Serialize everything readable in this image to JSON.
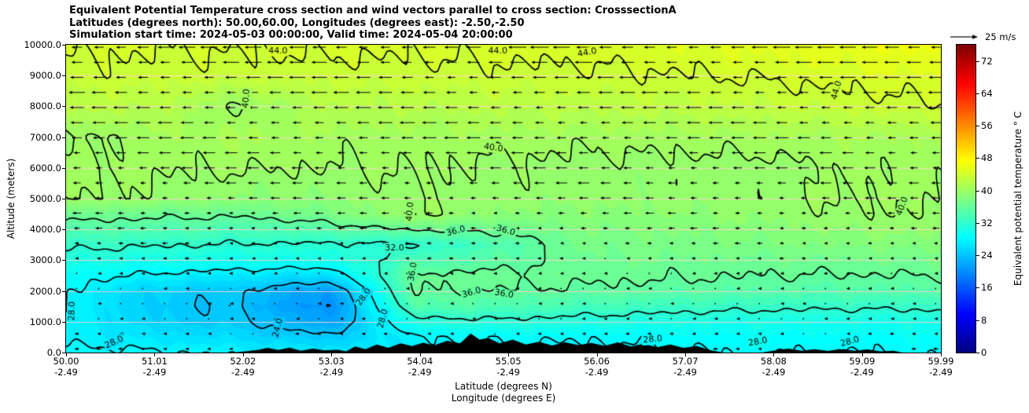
{
  "titles": {
    "line1": "Equivalent Potential Temperature cross section and wind vectors parallel to cross section: CrosssectionA",
    "line2": "Latitudes (degrees north): 50.00,60.00, Longitudes (degrees east): -2.50,-2.50",
    "line3": "Simulation start time: 2024-05-03 00:00:00, Valid time: 2024-05-04 20:00:00"
  },
  "quiver_key": {
    "label": "25 m/s",
    "speed": 25
  },
  "axes": {
    "x": {
      "label_line1": "Latitude (degrees N)",
      "label_line2": "Longitude (degrees E)",
      "ticks": [
        {
          "lat": "50.00",
          "lon": "-2.49"
        },
        {
          "lat": "51.01",
          "lon": "-2.49"
        },
        {
          "lat": "52.02",
          "lon": "-2.49"
        },
        {
          "lat": "53.03",
          "lon": "-2.49"
        },
        {
          "lat": "54.04",
          "lon": "-2.49"
        },
        {
          "lat": "55.05",
          "lon": "-2.49"
        },
        {
          "lat": "56.06",
          "lon": "-2.49"
        },
        {
          "lat": "57.07",
          "lon": "-2.49"
        },
        {
          "lat": "58.08",
          "lon": "-2.49"
        },
        {
          "lat": "59.09",
          "lon": "-2.49"
        },
        {
          "lat": "59.99",
          "lon": "-2.49"
        }
      ]
    },
    "y": {
      "label": "Altitude (meters)",
      "ticks": [
        "0.0",
        "1000.0",
        "2000.0",
        "3000.0",
        "4000.0",
        "5000.0",
        "6000.0",
        "7000.0",
        "8000.0",
        "9000.0",
        "10000.0"
      ]
    }
  },
  "colorbar": {
    "label": "Equivalent potential temperature ° C",
    "ticks": [
      "0",
      "8",
      "16",
      "24",
      "32",
      "40",
      "48",
      "56",
      "64",
      "72"
    ],
    "min": 0,
    "max": 76,
    "colormap": "jet"
  },
  "chart_data": {
    "type": "heatmap",
    "x_range": [
      50.0,
      59.99
    ],
    "z_range": [
      0,
      10000
    ],
    "value_range": [
      0,
      76
    ],
    "colormap": "jet",
    "grid": {
      "x": [
        50,
        51,
        52,
        53,
        54,
        55,
        56,
        57,
        58,
        59,
        60
      ],
      "z": [
        0,
        500,
        1000,
        1500,
        2000,
        2500,
        3000,
        3500,
        4000,
        4500,
        5000,
        6000,
        7000,
        8000,
        9000,
        10000
      ],
      "values": [
        [
          28.6,
          28.2,
          27.6,
          26.8,
          27.2,
          27.6,
          27.4,
          27.8,
          28.2,
          28.0,
          28.4
        ],
        [
          27.6,
          26.6,
          25.8,
          24.6,
          27.8,
          28.4,
          28.2,
          28.6,
          28.8,
          28.6,
          29.0
        ],
        [
          27.7,
          25.2,
          24.4,
          21.5,
          31.0,
          31.5,
          30.8,
          30.4,
          30.2,
          30.0,
          30.2
        ],
        [
          27.8,
          24.6,
          23.8,
          19.8,
          34.8,
          34.2,
          33.6,
          33.0,
          32.6,
          32.4,
          32.6
        ],
        [
          28.1,
          25.2,
          24.2,
          21.0,
          36.2,
          35.9,
          35.6,
          35.2,
          34.8,
          34.6,
          34.8
        ],
        [
          28.9,
          27.6,
          26.8,
          26.0,
          36.4,
          36.6,
          36.5,
          36.2,
          36.0,
          35.9,
          36.1
        ],
        [
          30.6,
          30.2,
          29.8,
          30.0,
          33.8,
          35.2,
          36.8,
          36.9,
          36.8,
          36.9,
          37.1
        ],
        [
          32.6,
          32.2,
          31.8,
          31.6,
          31.6,
          34.4,
          37.4,
          37.6,
          37.8,
          38.2,
          38.4
        ],
        [
          34.8,
          34.4,
          34.0,
          34.8,
          36.2,
          36.6,
          38.0,
          38.2,
          38.6,
          39.2,
          39.4
        ],
        [
          37.0,
          36.6,
          36.4,
          37.6,
          40.2,
          38.8,
          38.7,
          38.9,
          39.3,
          39.8,
          40.0
        ],
        [
          40.1,
          39.6,
          38.9,
          38.9,
          39.8,
          39.4,
          39.3,
          39.5,
          39.7,
          40.1,
          40.2
        ],
        [
          40.4,
          40.2,
          40.1,
          40.0,
          40.1,
          39.7,
          39.6,
          39.5,
          39.4,
          40.3,
          40.4
        ],
        [
          39.5,
          40.6,
          41.2,
          40.6,
          40.5,
          40.6,
          40.4,
          40.6,
          40.8,
          40.9,
          41.0
        ],
        [
          42.4,
          42.2,
          39.7,
          42.0,
          42.1,
          42.3,
          42.4,
          42.6,
          42.9,
          43.4,
          43.8
        ],
        [
          43.6,
          43.5,
          43.4,
          43.4,
          43.5,
          43.6,
          43.7,
          43.9,
          44.2,
          44.6,
          45.0
        ],
        [
          44.3,
          44.2,
          44.2,
          44.3,
          44.4,
          44.5,
          44.7,
          45.0,
          45.4,
          45.9,
          46.4
        ]
      ]
    },
    "contour_levels": [
      20,
      24,
      28,
      32,
      36,
      40,
      44
    ],
    "contour_labels": [
      {
        "x": 52.42,
        "z": 9790,
        "text": "44.0",
        "rot": 0
      },
      {
        "x": 54.93,
        "z": 9800,
        "text": "44.0",
        "rot": 0
      },
      {
        "x": 55.95,
        "z": 9740,
        "text": "44.0",
        "rot": -10
      },
      {
        "x": 58.8,
        "z": 8520,
        "text": "44.0",
        "rot": -75
      },
      {
        "x": 52.06,
        "z": 8250,
        "text": "40.0",
        "rot": -85
      },
      {
        "x": 54.88,
        "z": 6650,
        "text": "40.0",
        "rot": 8
      },
      {
        "x": 59.55,
        "z": 4750,
        "text": "40.0",
        "rot": -70
      },
      {
        "x": 53.93,
        "z": 4580,
        "text": "40.0",
        "rot": -85
      },
      {
        "x": 54.45,
        "z": 3940,
        "text": "36.0",
        "rot": -15
      },
      {
        "x": 55.02,
        "z": 3960,
        "text": "36.0",
        "rot": 15
      },
      {
        "x": 53.75,
        "z": 3400,
        "text": "32.0",
        "rot": 0
      },
      {
        "x": 53.96,
        "z": 2620,
        "text": "36.0",
        "rot": -80
      },
      {
        "x": 54.63,
        "z": 1940,
        "text": "36.0",
        "rot": -15
      },
      {
        "x": 55.0,
        "z": 1900,
        "text": "36.0",
        "rot": 10
      },
      {
        "x": 50.07,
        "z": 1350,
        "text": "28.0",
        "rot": -88
      },
      {
        "x": 53.4,
        "z": 1800,
        "text": "28.0",
        "rot": -55
      },
      {
        "x": 53.62,
        "z": 1100,
        "text": "28.0",
        "rot": -75
      },
      {
        "x": 52.42,
        "z": 800,
        "text": "24.0",
        "rot": -75
      },
      {
        "x": 50.55,
        "z": 330,
        "text": "28.0",
        "rot": -25
      },
      {
        "x": 56.7,
        "z": 420,
        "text": "28.0",
        "rot": -5
      },
      {
        "x": 57.9,
        "z": 340,
        "text": "28.0",
        "rot": -10
      },
      {
        "x": 58.95,
        "z": 350,
        "text": "28.0",
        "rot": -15
      }
    ],
    "terrain": [
      [
        50,
        0
      ],
      [
        51.5,
        0
      ],
      [
        51.9,
        0
      ],
      [
        52.05,
        40
      ],
      [
        52.2,
        90
      ],
      [
        52.3,
        150
      ],
      [
        52.42,
        80
      ],
      [
        52.55,
        160
      ],
      [
        52.68,
        60
      ],
      [
        52.82,
        130
      ],
      [
        52.95,
        70
      ],
      [
        53.1,
        90
      ],
      [
        53.2,
        40
      ],
      [
        53.3,
        200
      ],
      [
        53.42,
        110
      ],
      [
        53.55,
        260
      ],
      [
        53.68,
        150
      ],
      [
        53.82,
        300
      ],
      [
        53.95,
        210
      ],
      [
        54.08,
        320
      ],
      [
        54.2,
        230
      ],
      [
        54.35,
        380
      ],
      [
        54.5,
        300
      ],
      [
        54.62,
        620
      ],
      [
        54.72,
        420
      ],
      [
        54.82,
        470
      ],
      [
        54.95,
        300
      ],
      [
        55.1,
        420
      ],
      [
        55.25,
        260
      ],
      [
        55.4,
        350
      ],
      [
        55.55,
        230
      ],
      [
        55.7,
        330
      ],
      [
        55.85,
        240
      ],
      [
        56.0,
        310
      ],
      [
        56.15,
        220
      ],
      [
        56.3,
        330
      ],
      [
        56.45,
        200
      ],
      [
        56.6,
        290
      ],
      [
        56.75,
        170
      ],
      [
        56.9,
        260
      ],
      [
        57.05,
        150
      ],
      [
        57.2,
        210
      ],
      [
        57.35,
        80
      ],
      [
        57.5,
        0
      ],
      [
        57.95,
        0
      ],
      [
        58.1,
        70
      ],
      [
        58.25,
        130
      ],
      [
        58.4,
        60
      ],
      [
        58.55,
        110
      ],
      [
        58.7,
        50
      ],
      [
        58.85,
        120
      ],
      [
        59.0,
        60
      ],
      [
        59.15,
        100
      ],
      [
        59.3,
        40
      ],
      [
        59.45,
        60
      ],
      [
        59.55,
        0
      ],
      [
        59.99,
        0
      ]
    ],
    "wind": {
      "ref_speed": 25,
      "ref_label": "25 m/s",
      "x_start": 50.12,
      "x_step": 0.2515,
      "cols": 40,
      "z_start": 120,
      "z_step": 490,
      "rows": 21,
      "u_profile": [
        -3.5,
        -2.5,
        -1.8,
        -1.2,
        -1.6,
        -2.2,
        -3,
        -3.8,
        -4.6,
        -5.6,
        -6.6,
        -7.6,
        -8.4,
        -9,
        -9.6,
        -10,
        -10.4,
        -10.8,
        -11.2,
        -11.8,
        -12.4
      ]
    }
  }
}
